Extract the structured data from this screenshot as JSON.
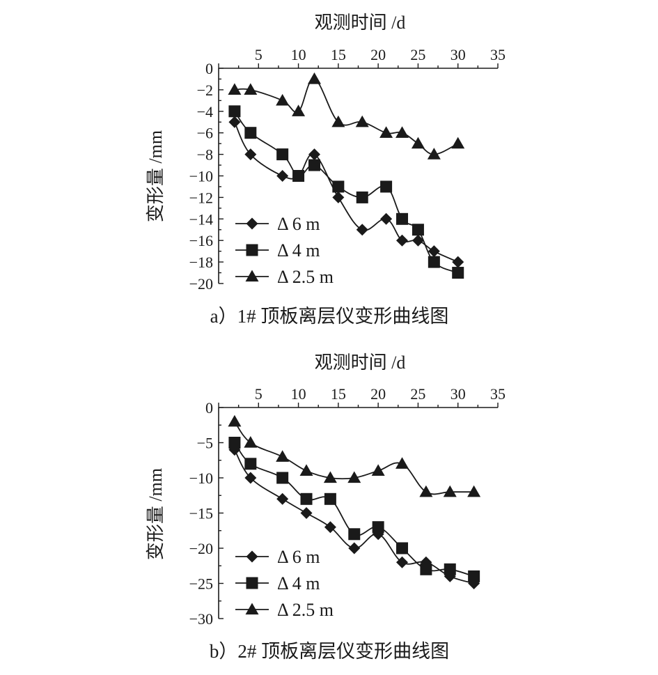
{
  "chart_data": [
    {
      "type": "line",
      "caption": "a）1# 顶板离层仪变形曲线图",
      "xlabel": "观测时间 /d",
      "ylabel": "变形量 /mm",
      "xlim": [
        0,
        35
      ],
      "ylim": [
        -20,
        0
      ],
      "xticks": [
        5,
        10,
        15,
        20,
        25,
        30,
        35
      ],
      "yticks": [
        0,
        -2,
        -4,
        -6,
        -8,
        -10,
        -12,
        -14,
        -16,
        -18,
        -20
      ],
      "x_axis_position": "top",
      "legend_position": "bottom-left",
      "grid": false,
      "series": [
        {
          "name": "Δ 6 m",
          "marker": "diamond",
          "x": [
            2,
            4,
            8,
            10,
            12,
            15,
            18,
            21,
            23,
            25,
            27,
            30
          ],
          "y": [
            -5,
            -8,
            -10,
            -10,
            -8,
            -12,
            -15,
            -14,
            -16,
            -16,
            -17,
            -18
          ]
        },
        {
          "name": "Δ 4 m",
          "marker": "square",
          "x": [
            2,
            4,
            8,
            10,
            12,
            15,
            18,
            21,
            23,
            25,
            27,
            30
          ],
          "y": [
            -4,
            -6,
            -8,
            -10,
            -9,
            -11,
            -12,
            -11,
            -14,
            -15,
            -18,
            -19
          ]
        },
        {
          "name": "Δ 2.5 m",
          "marker": "triangle",
          "x": [
            2,
            4,
            8,
            10,
            12,
            15,
            18,
            21,
            23,
            25,
            27,
            30
          ],
          "y": [
            -2,
            -2,
            -3,
            -4,
            -1,
            -5,
            -5,
            -6,
            -6,
            -7,
            -8,
            -7
          ]
        }
      ]
    },
    {
      "type": "line",
      "caption": "b）2# 顶板离层仪变形曲线图",
      "xlabel": "观测时间 /d",
      "ylabel": "变形量 /mm",
      "xlim": [
        0,
        35
      ],
      "ylim": [
        -30,
        0
      ],
      "xticks": [
        5,
        10,
        15,
        20,
        25,
        30,
        35
      ],
      "yticks": [
        0,
        -5,
        -10,
        -15,
        -20,
        -25,
        -30
      ],
      "x_axis_position": "top",
      "legend_position": "bottom-left",
      "grid": false,
      "series": [
        {
          "name": "Δ 6 m",
          "marker": "diamond",
          "x": [
            2,
            4,
            8,
            11,
            14,
            17,
            20,
            23,
            26,
            29,
            32
          ],
          "y": [
            -6,
            -10,
            -13,
            -15,
            -17,
            -20,
            -18,
            -22,
            -22,
            -24,
            -25
          ]
        },
        {
          "name": "Δ 4 m",
          "marker": "square",
          "x": [
            2,
            4,
            8,
            11,
            14,
            17,
            20,
            23,
            26,
            29,
            32
          ],
          "y": [
            -5,
            -8,
            -10,
            -13,
            -13,
            -18,
            -17,
            -20,
            -23,
            -23,
            -24
          ]
        },
        {
          "name": "Δ 2.5 m",
          "marker": "triangle",
          "x": [
            2,
            4,
            8,
            11,
            14,
            17,
            20,
            23,
            26,
            29,
            32
          ],
          "y": [
            -2,
            -5,
            -7,
            -9,
            -10,
            -10,
            -9,
            -8,
            -12,
            -12,
            -12
          ]
        }
      ]
    }
  ]
}
